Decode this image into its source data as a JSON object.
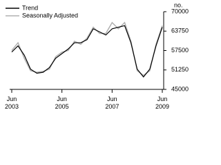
{
  "chart_data": {
    "type": "line",
    "y_unit": "no.",
    "categories": [
      "Jun 2003",
      null,
      null,
      null,
      null,
      null,
      null,
      null,
      "Jun 2005",
      null,
      null,
      null,
      null,
      null,
      null,
      null,
      "Jun 2007",
      null,
      null,
      null,
      null,
      null,
      null,
      null,
      "Jun 2009"
    ],
    "series": [
      {
        "name": "Trend",
        "color": "#000000",
        "values": [
          57000,
          59000,
          56000,
          51500,
          50200,
          50500,
          52000,
          55000,
          56500,
          58000,
          60000,
          60000,
          61000,
          64500,
          63500,
          62500,
          64500,
          65000,
          65500,
          60000,
          51500,
          49000,
          51500,
          59000,
          65000
        ]
      },
      {
        "name": "Seasonally Adjusted",
        "color": "#b0b0b0",
        "values": [
          57500,
          60000,
          55000,
          51000,
          50500,
          50800,
          51500,
          55500,
          57000,
          57500,
          60500,
          59500,
          61500,
          65000,
          63000,
          63000,
          66500,
          64500,
          66500,
          60500,
          51000,
          49500,
          51000,
          59500,
          65500
        ]
      }
    ],
    "ylim": [
      45000,
      70000
    ],
    "yticks": [
      45000,
      51250,
      57500,
      63750,
      70000
    ],
    "y_axis_side": "right",
    "legend": "top-left"
  }
}
